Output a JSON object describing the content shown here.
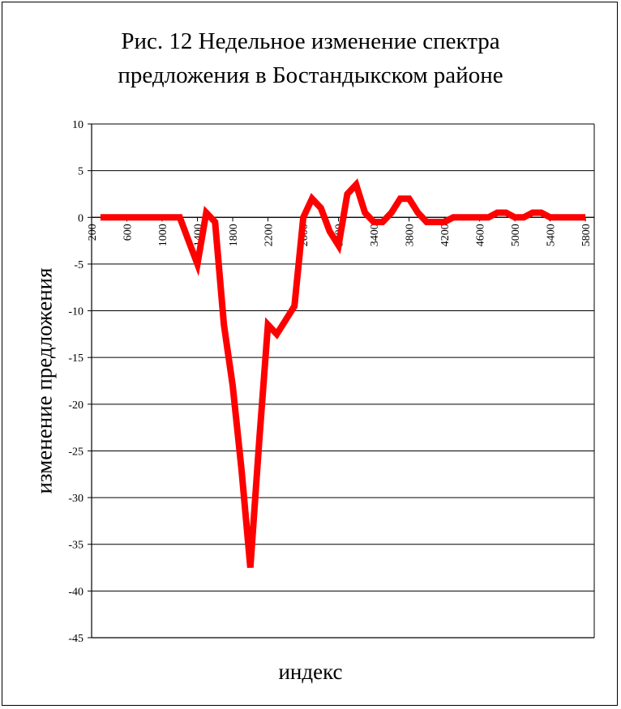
{
  "chart_data": {
    "type": "line",
    "title_lines": [
      "Рис. 12 Недельное изменение спектра",
      "предложения в Бостандыкском районе"
    ],
    "xlabel": "индекс",
    "ylabel": "изменение предложения",
    "ylim": [
      -45,
      10
    ],
    "yticks": [
      10,
      5,
      0,
      -5,
      -10,
      -15,
      -20,
      -25,
      -30,
      -35,
      -40,
      -45
    ],
    "xlim": [
      200,
      5900
    ],
    "xticks": [
      200,
      600,
      1000,
      1400,
      1800,
      2200,
      2600,
      3000,
      3400,
      3800,
      4200,
      4600,
      5000,
      5400,
      5800
    ],
    "grid": true,
    "series": [
      {
        "color": "#ff0000",
        "x": [
          300,
          400,
          500,
          600,
          700,
          800,
          900,
          1000,
          1100,
          1200,
          1300,
          1400,
          1500,
          1600,
          1700,
          1800,
          1900,
          2000,
          2100,
          2200,
          2300,
          2400,
          2500,
          2600,
          2700,
          2800,
          2900,
          3000,
          3100,
          3200,
          3300,
          3400,
          3500,
          3600,
          3700,
          3800,
          3900,
          4000,
          4100,
          4200,
          4300,
          4400,
          4500,
          4600,
          4700,
          4800,
          4900,
          5000,
          5100,
          5200,
          5300,
          5400,
          5500,
          5600,
          5700,
          5800
        ],
        "values": [
          0,
          0,
          0,
          0,
          0,
          0,
          0,
          0,
          0,
          0,
          -2.5,
          -5,
          0.5,
          -0.5,
          -11.5,
          -18,
          -27,
          -37.5,
          -24,
          -11.5,
          -12.5,
          -11,
          -9.5,
          0,
          2,
          1,
          -1.5,
          -3,
          2.5,
          3.5,
          0.5,
          -0.5,
          -0.5,
          0.5,
          2,
          2,
          0.5,
          -0.5,
          -0.5,
          -0.5,
          0,
          0,
          0,
          0,
          0,
          0.5,
          0.5,
          0,
          0,
          0.5,
          0.5,
          0,
          0,
          0,
          0,
          0
        ]
      }
    ]
  }
}
